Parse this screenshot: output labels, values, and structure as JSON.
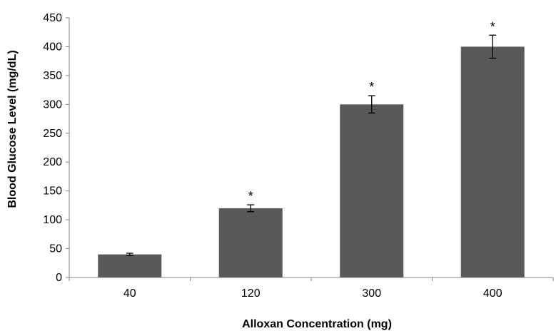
{
  "chart_data": {
    "type": "bar",
    "title": "",
    "xlabel": "Alloxan Concentration (mg)",
    "ylabel": "Blood Glucose Level (mg/dL)",
    "categories": [
      "40",
      "120",
      "300",
      "400"
    ],
    "values": [
      40,
      120,
      300,
      400
    ],
    "error": [
      2,
      6,
      15,
      20
    ],
    "significance": [
      "",
      "*",
      "*",
      "*"
    ],
    "ylim": [
      0,
      450
    ],
    "yticks": [
      "0",
      "50",
      "100",
      "150",
      "200",
      "250",
      "300",
      "350",
      "400",
      "450"
    ],
    "grid": false,
    "legend": "none",
    "bar_color": "#595959"
  }
}
